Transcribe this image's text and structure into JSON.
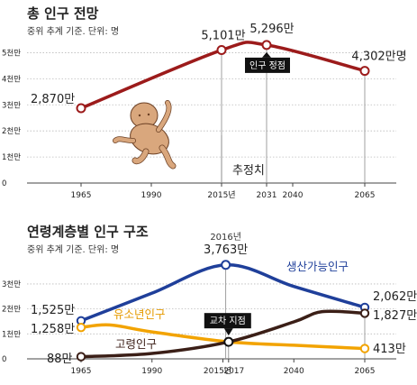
{
  "chart_data": [
    {
      "type": "line",
      "title": "총 인구 전망",
      "subtitle": "중위 추계 기준. 단위: 명",
      "x": [
        1965,
        2015,
        2031,
        2065
      ],
      "xticks": [
        "1965",
        "1990",
        "2015년",
        "2031",
        "2040",
        "2065"
      ],
      "yticks": [
        "0",
        "1천만",
        "2천만",
        "3천만",
        "4천만",
        "5천만"
      ],
      "ylim": [
        0,
        5500
      ],
      "series": [
        {
          "values": [
            2870,
            5101,
            5296,
            4302
          ],
          "color": "#9c1b1b"
        }
      ],
      "point_labels": [
        "2,870만",
        "5,101만",
        "5,296만",
        "4,302만명"
      ],
      "annotations": {
        "peak": "인구 정점",
        "projection": "추정치"
      }
    },
    {
      "type": "line",
      "title": "연령계층별 인구 구조",
      "subtitle": "중위 추계 기준. 단위: 명",
      "xticks": [
        "1965",
        "1990",
        "2015년",
        "2017",
        "2040",
        "2065"
      ],
      "yticks": [
        "0",
        "1천만",
        "2천만",
        "3천만"
      ],
      "ylim": [
        0,
        3900
      ],
      "series": [
        {
          "name": "생산가능인구",
          "color": "#1f3f9a",
          "x": [
            1965,
            1990,
            2016,
            2040,
            2065
          ],
          "values": [
            1525,
            2630,
            3763,
            2900,
            2062
          ]
        },
        {
          "name": "유소년인구",
          "color": "#f2a300",
          "x": [
            1965,
            1975,
            1990,
            2017,
            2040,
            2065
          ],
          "values": [
            1258,
            1360,
            1080,
            680,
            545,
            413
          ]
        },
        {
          "name": "고령인구",
          "color": "#3b1f17",
          "x": [
            1965,
            1990,
            2017,
            2040,
            2050,
            2065
          ],
          "values": [
            88,
            215,
            680,
            1480,
            1890,
            1827
          ]
        }
      ],
      "labels": {
        "peak_year": "2016년",
        "peak_value": "3,763만",
        "cross": "교차 지점",
        "working_end": "2,062만",
        "elderly_end": "1,827만",
        "youth_end": "413만",
        "working_start": "1,525만",
        "youth_start": "1,258만",
        "elderly_start": "88만"
      }
    }
  ]
}
